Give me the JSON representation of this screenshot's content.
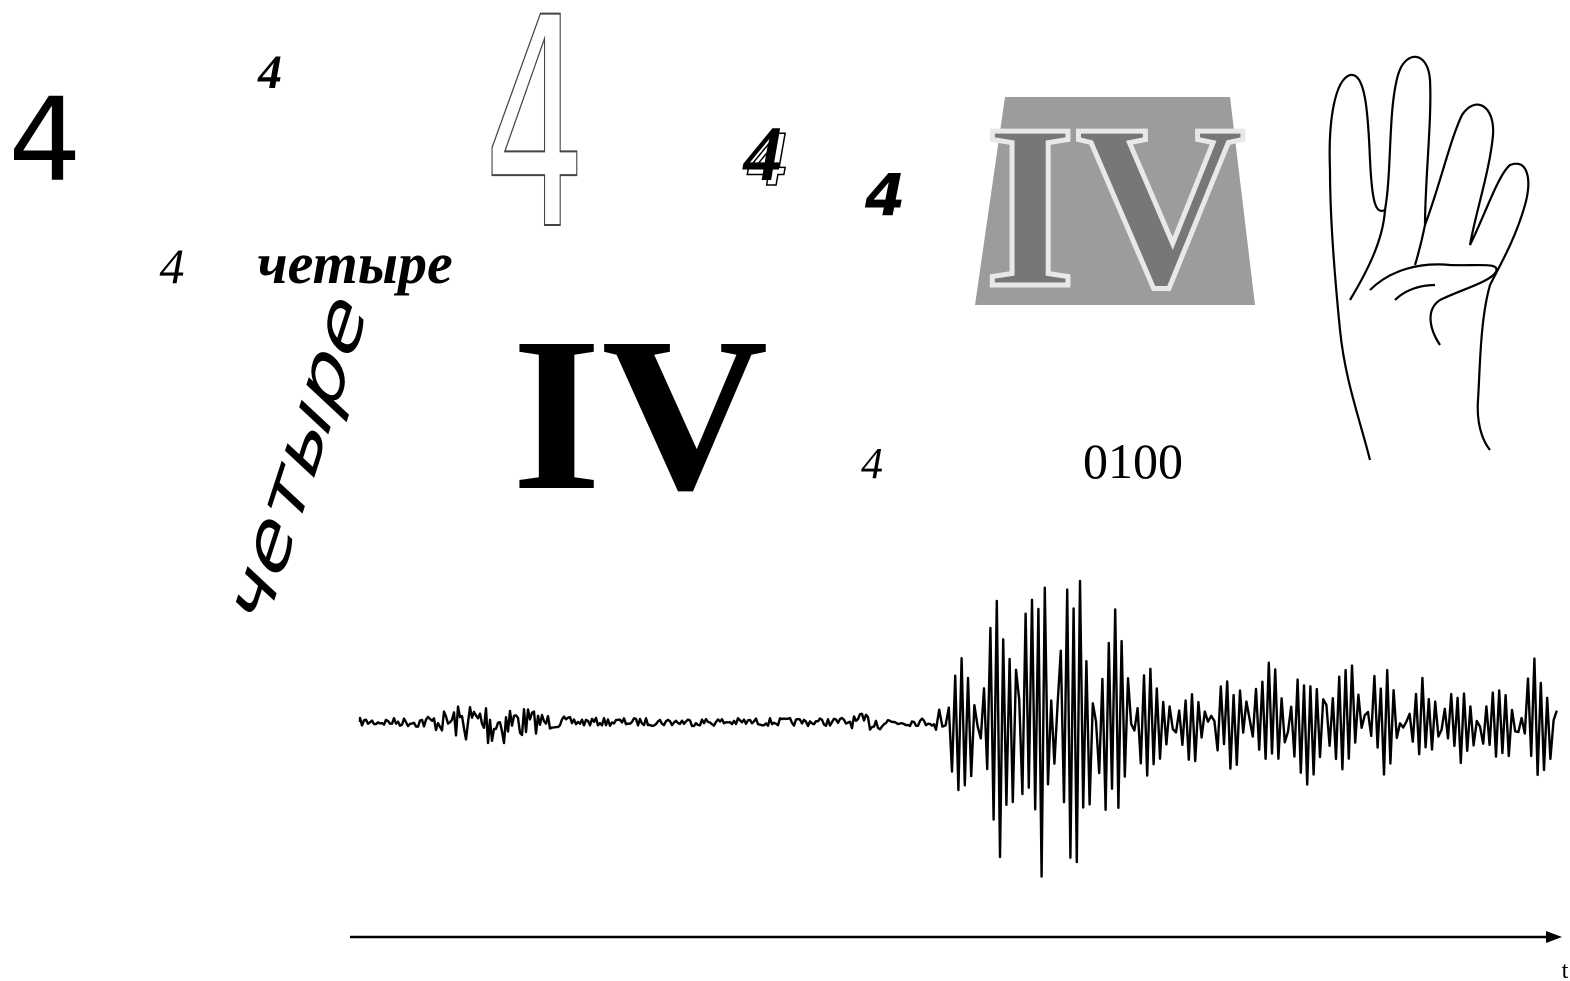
{
  "numerals": {
    "plain": "4",
    "small_italic": "4",
    "outline": "4",
    "shadow": "4",
    "bold_italic": "4",
    "script": "4",
    "handwritten": "4"
  },
  "words": {
    "horizontal": "четыре",
    "rotated": "четыре"
  },
  "roman": {
    "large": "IV",
    "boxed": "IV"
  },
  "binary": "0100",
  "axis_label": "t"
}
